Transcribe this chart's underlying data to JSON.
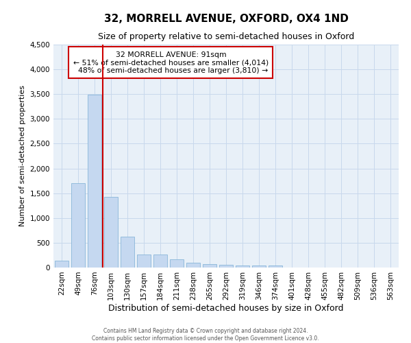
{
  "title": "32, MORRELL AVENUE, OXFORD, OX4 1ND",
  "subtitle": "Size of property relative to semi-detached houses in Oxford",
  "xlabel": "Distribution of semi-detached houses by size in Oxford",
  "ylabel": "Number of semi-detached properties",
  "footer_line1": "Contains HM Land Registry data © Crown copyright and database right 2024.",
  "footer_line2": "Contains public sector information licensed under the Open Government Licence v3.0.",
  "bar_labels": [
    "22sqm",
    "49sqm",
    "76sqm",
    "103sqm",
    "130sqm",
    "157sqm",
    "184sqm",
    "211sqm",
    "238sqm",
    "265sqm",
    "292sqm",
    "319sqm",
    "346sqm",
    "374sqm",
    "401sqm",
    "428sqm",
    "455sqm",
    "482sqm",
    "509sqm",
    "536sqm",
    "563sqm"
  ],
  "bar_values": [
    140,
    1700,
    3490,
    1420,
    620,
    270,
    270,
    160,
    95,
    75,
    50,
    45,
    38,
    38,
    0,
    0,
    0,
    0,
    0,
    0,
    0
  ],
  "bar_color": "#c5d8f0",
  "bar_edge_color": "#7aadd4",
  "property_sqm": 91,
  "property_label": "32 MORRELL AVENUE: 91sqm",
  "pct_smaller": 51,
  "count_smaller": "4,014",
  "pct_larger": 48,
  "count_larger": "3,810",
  "annotation_box_color": "#cc0000",
  "vline_color": "#cc0000",
  "ylim": [
    0,
    4500
  ],
  "yticks": [
    0,
    500,
    1000,
    1500,
    2000,
    2500,
    3000,
    3500,
    4000,
    4500
  ],
  "grid_color": "#c8d8ec",
  "bg_color": "#e8f0f8",
  "title_fontsize": 11,
  "subtitle_fontsize": 9,
  "xlabel_fontsize": 9,
  "ylabel_fontsize": 8
}
